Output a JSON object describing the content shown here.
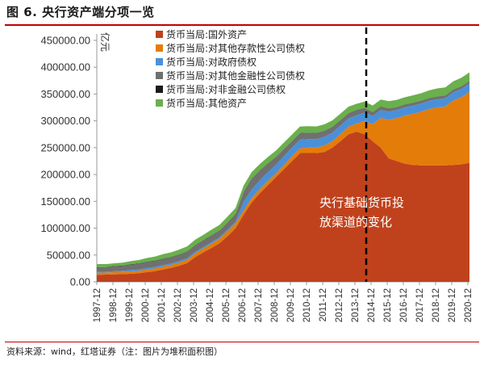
{
  "title": "图 6. 央行资产端分项一览",
  "source": "资料来源：wind，红塔证券（注：图片为堆积面积图）",
  "chart_data": {
    "type": "area",
    "stacked": true,
    "unit_label": "亿元",
    "ylim": [
      0,
      450000
    ],
    "yticks": [
      "0.00",
      "50000.00",
      "100000.00",
      "150000.00",
      "200000.00",
      "250000.00",
      "300000.00",
      "350000.00",
      "400000.00",
      "450000.00"
    ],
    "xlabels": [
      "1997-12",
      "1998-12",
      "1999-12",
      "2000-12",
      "2001-12",
      "2002-12",
      "2003-12",
      "2004-12",
      "2005-12",
      "2006-12",
      "2007-12",
      "2008-12",
      "2009-12",
      "2010-12",
      "2011-12",
      "2012-12",
      "2013-12",
      "2014-12",
      "2015-12",
      "2016-12",
      "2017-12",
      "2018-12",
      "2019-12",
      "2020-12"
    ],
    "x": [
      1997.9,
      1998.5,
      1999.0,
      1999.5,
      2000.0,
      2000.5,
      2001.0,
      2001.5,
      2002.0,
      2002.5,
      2003.0,
      2003.5,
      2004.0,
      2004.5,
      2005.0,
      2005.5,
      2006.0,
      2006.5,
      2007.0,
      2007.5,
      2008.0,
      2008.5,
      2009.0,
      2009.5,
      2010.0,
      2010.5,
      2011.0,
      2011.5,
      2012.0,
      2012.5,
      2013.0,
      2013.5,
      2014.0,
      2014.5,
      2015.0,
      2015.5,
      2016.0,
      2016.5,
      2017.0,
      2017.5,
      2018.0,
      2018.5,
      2019.0,
      2019.5,
      2020.0,
      2020.5,
      2021.0
    ],
    "vline_x": 2014.6,
    "annotation": [
      "央行基础货币投",
      "放渠道的变化"
    ],
    "legend_position": "top-left",
    "series": [
      {
        "name": "货币当局:国外资产",
        "color": "#c0421c",
        "values": [
          13000,
          13500,
          14000,
          14500,
          15000,
          16000,
          18000,
          20000,
          23000,
          26000,
          30000,
          35000,
          46000,
          55000,
          63000,
          72000,
          85000,
          100000,
          125000,
          148000,
          165000,
          180000,
          195000,
          210000,
          225000,
          240000,
          240000,
          240000,
          242000,
          250000,
          262000,
          275000,
          280000,
          275000,
          262000,
          250000,
          230000,
          225000,
          220000,
          218000,
          217000,
          217000,
          217000,
          217000,
          218000,
          219000,
          222000
        ]
      },
      {
        "name": "货币当局:对其他存款性公司债权",
        "color": "#e47c0a",
        "values": [
          4000,
          4000,
          4000,
          4000,
          4500,
          4500,
          5000,
          5000,
          5500,
          5500,
          6000,
          6000,
          7000,
          7000,
          8000,
          8000,
          9000,
          9000,
          8000,
          8000,
          8000,
          8000,
          7000,
          8000,
          9000,
          9000,
          10000,
          10000,
          12000,
          12000,
          13000,
          14000,
          15000,
          25000,
          32000,
          55000,
          72000,
          80000,
          90000,
          95000,
          100000,
          105000,
          108000,
          110000,
          120000,
          125000,
          132000
        ]
      },
      {
        "name": "货币当局:对政府债权",
        "color": "#4a90d9",
        "values": [
          1500,
          1500,
          2000,
          2000,
          2500,
          2500,
          2800,
          2800,
          2800,
          2800,
          2900,
          2900,
          2900,
          2900,
          2900,
          2900,
          2900,
          2900,
          16000,
          16000,
          16000,
          16000,
          16000,
          16000,
          16000,
          16000,
          16000,
          16000,
          16000,
          16000,
          16000,
          15500,
          15500,
          15300,
          15300,
          15300,
          15300,
          15300,
          15300,
          15300,
          15300,
          15300,
          15300,
          15300,
          15300,
          15300,
          15300
        ]
      },
      {
        "name": "货币当局:对其他金融性公司债权",
        "color": "#707070",
        "values": [
          8000,
          8000,
          9000,
          9000,
          10000,
          10500,
          11000,
          11000,
          11500,
          11500,
          11500,
          12000,
          12000,
          12000,
          12000,
          12000,
          13000,
          14000,
          18000,
          20000,
          18000,
          16000,
          14000,
          13000,
          12000,
          12000,
          11500,
          11000,
          11000,
          10500,
          10000,
          9500,
          9000,
          8000,
          7000,
          6000,
          5500,
          5000,
          5000,
          5000,
          4800,
          4800,
          4800,
          4800,
          4800,
          4800,
          4800
        ]
      },
      {
        "name": "货币当局:对非金融公司债权",
        "color": "#1a1a1a",
        "values": [
          600,
          600,
          600,
          600,
          600,
          600,
          600,
          600,
          600,
          600,
          600,
          600,
          600,
          600,
          600,
          600,
          600,
          600,
          600,
          600,
          600,
          600,
          600,
          600,
          500,
          500,
          500,
          500,
          500,
          400,
          400,
          400,
          400,
          400,
          400,
          400,
          400,
          400,
          300,
          300,
          300,
          300,
          300,
          300,
          300,
          300,
          300
        ]
      },
      {
        "name": "货币当局:其他资产",
        "color": "#6ab04c",
        "values": [
          6000,
          5500,
          5000,
          5500,
          6000,
          6500,
          7000,
          7500,
          8000,
          8500,
          9000,
          9500,
          10000,
          10000,
          10500,
          10500,
          11000,
          11000,
          12000,
          12000,
          12000,
          12000,
          12000,
          12000,
          12000,
          12000,
          12000,
          12000,
          12000,
          12000,
          12000,
          12000,
          12000,
          12000,
          12000,
          13000,
          13500,
          13500,
          13500,
          14000,
          14000,
          14500,
          15000,
          15000,
          15500,
          16000,
          16000
        ]
      }
    ]
  }
}
